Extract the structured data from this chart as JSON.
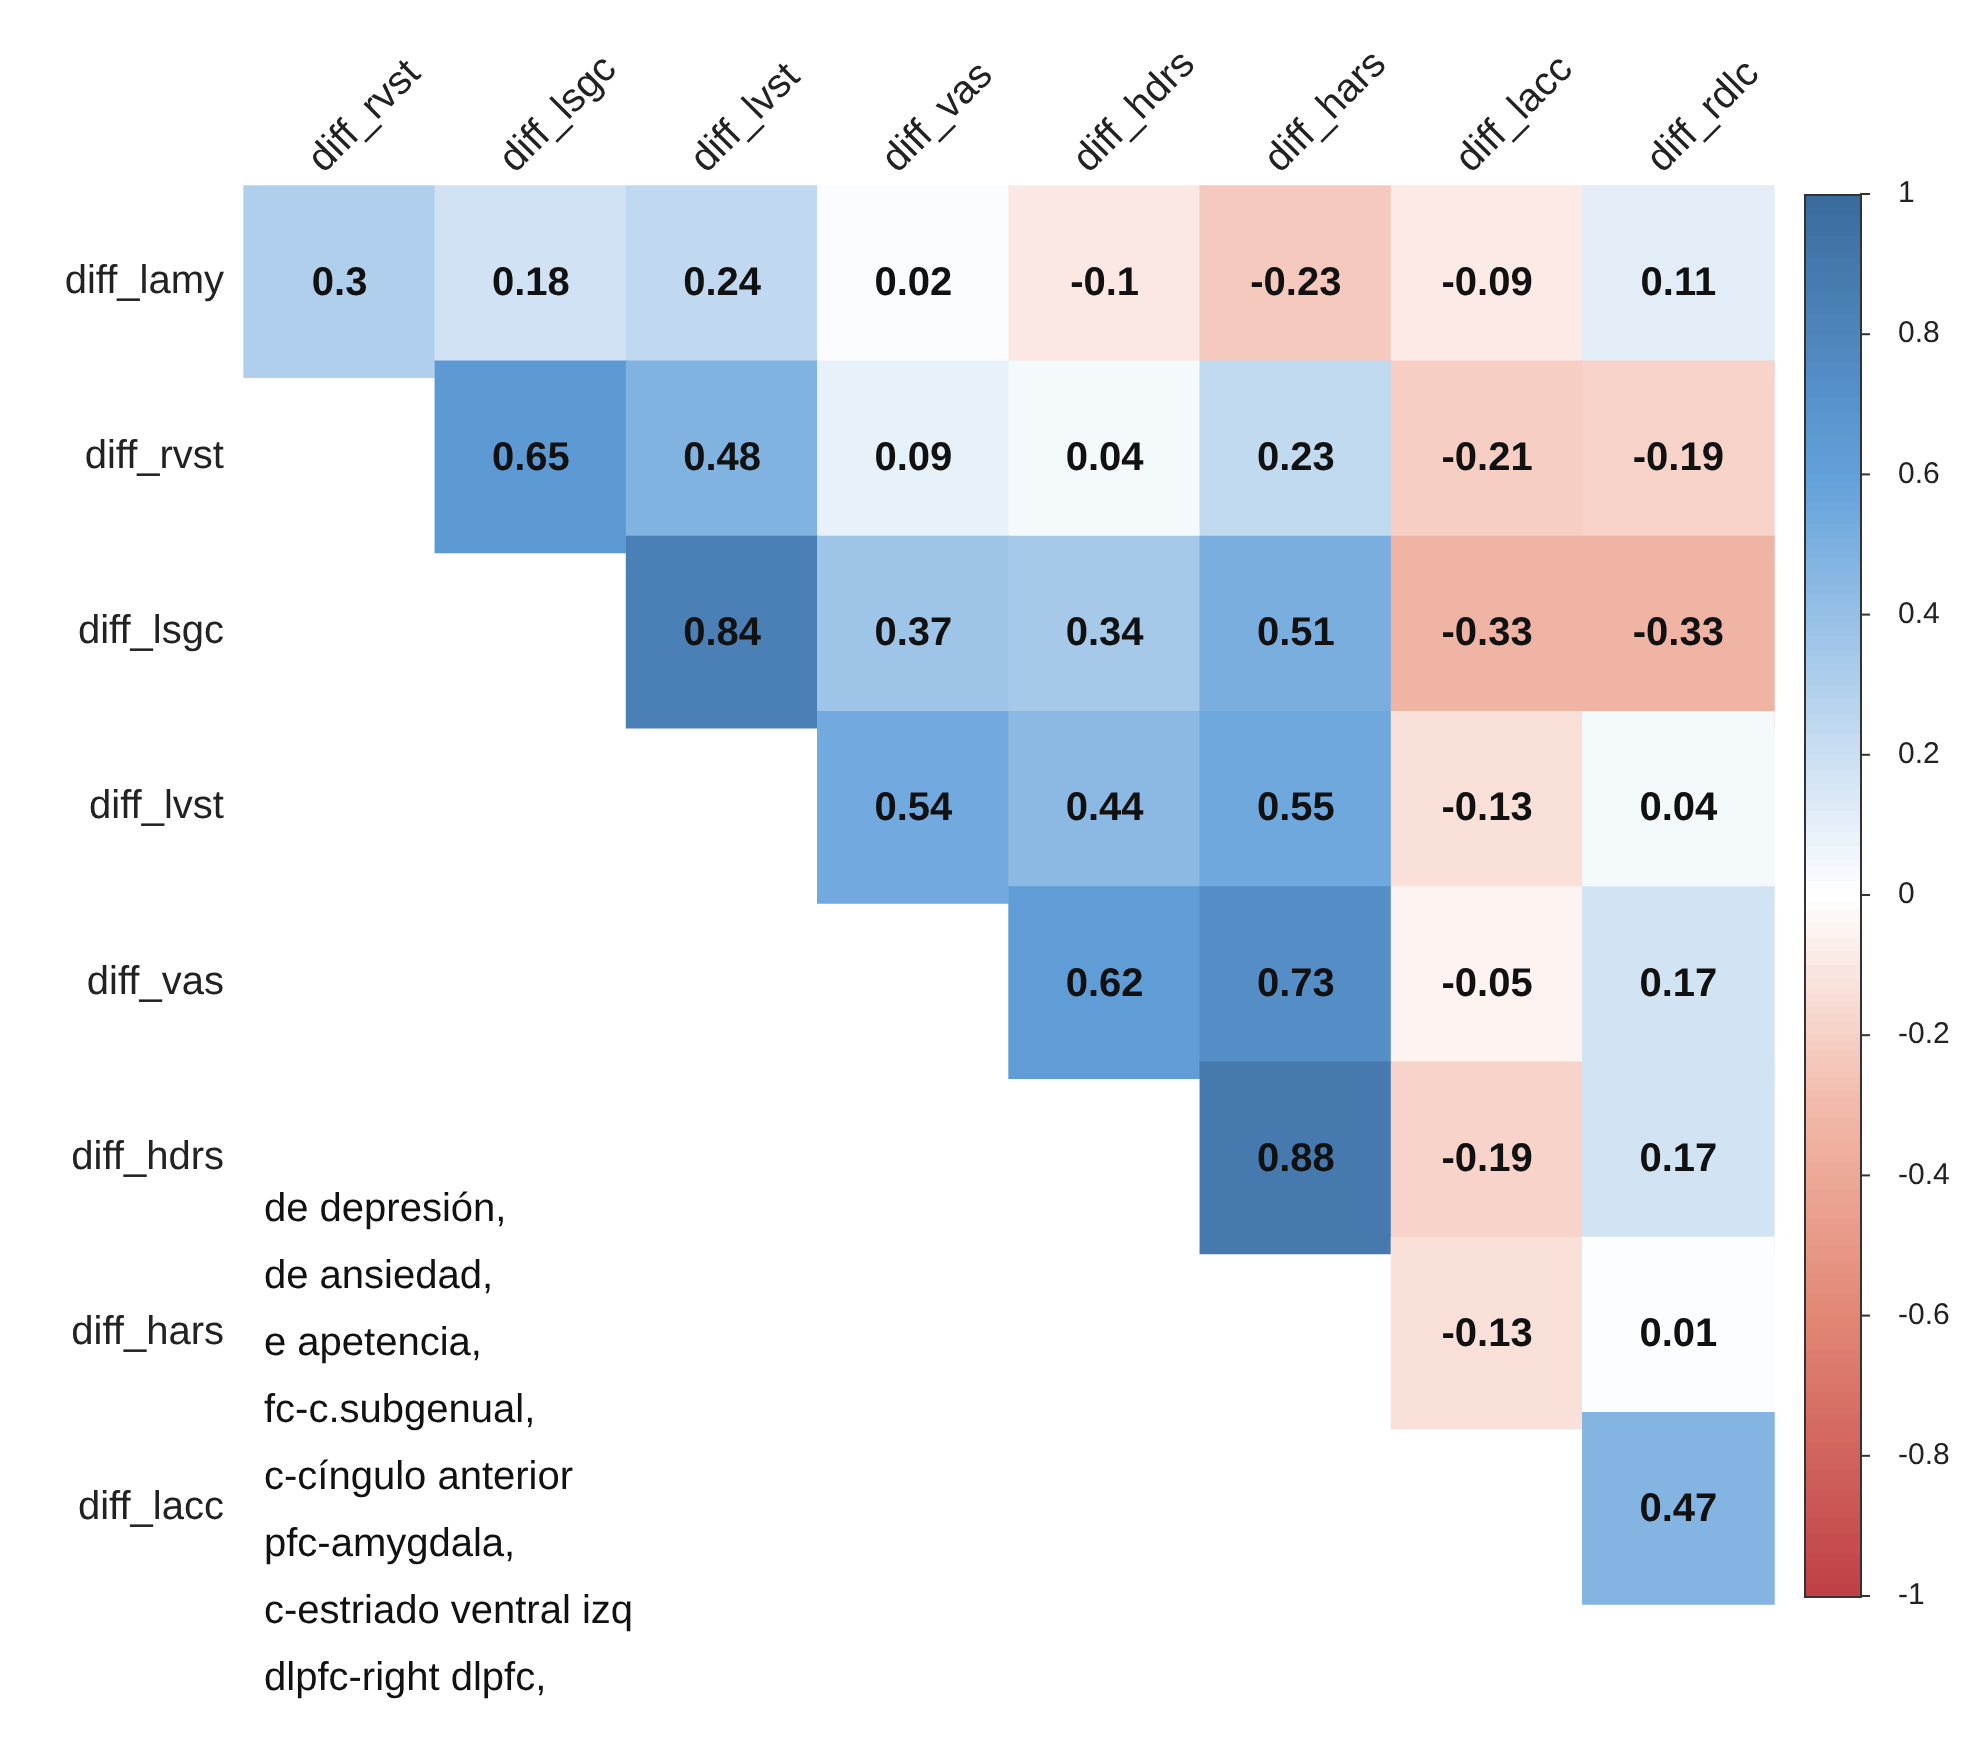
{
  "chart_data": {
    "type": "heatmap",
    "categories": [
      "diff_rvst",
      "diff_lsgc",
      "diff_lvst",
      "diff_vas",
      "diff_hdrs",
      "diff_hars",
      "diff_lacc",
      "diff_rdlc"
    ],
    "y_categories": [
      "diff_lamy",
      "diff_rvst",
      "diff_lsgc",
      "diff_lvst",
      "diff_vas",
      "diff_hdrs",
      "diff_hars",
      "diff_lacc"
    ],
    "cells": [
      [
        0.3,
        0.18,
        0.24,
        0.02,
        -0.1,
        -0.23,
        -0.09,
        0.11
      ],
      [
        null,
        0.65,
        0.48,
        0.09,
        0.04,
        0.23,
        -0.21,
        -0.19
      ],
      [
        null,
        null,
        0.84,
        0.37,
        0.34,
        0.51,
        -0.33,
        -0.33
      ],
      [
        null,
        null,
        null,
        0.54,
        0.44,
        0.55,
        -0.13,
        0.04
      ],
      [
        null,
        null,
        null,
        null,
        0.62,
        0.73,
        -0.05,
        0.17
      ],
      [
        null,
        null,
        null,
        null,
        null,
        0.88,
        -0.19,
        0.17
      ],
      [
        null,
        null,
        null,
        null,
        null,
        null,
        -0.13,
        0.01
      ],
      [
        null,
        null,
        null,
        null,
        null,
        null,
        null,
        0.47
      ]
    ],
    "data_labels": true,
    "clim": [
      -1,
      1
    ],
    "cticks": [
      1,
      0.8,
      0.6,
      0.4,
      0.2,
      0,
      -0.2,
      -0.4,
      -0.6,
      -0.8,
      -1
    ],
    "annotations": [
      "de depresión,",
      "de ansiedad,",
      "e apetencia,",
      "fc-c.subgenual,",
      "c-cíngulo anterior",
      "pfc-amygdala,",
      "c-estriado ventral izq",
      "dlpfc-right dlpfc,"
    ]
  }
}
